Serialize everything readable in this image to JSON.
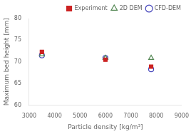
{
  "chart_data": {
    "type": "scatter",
    "xlabel": "Particle density [kg/m³]",
    "ylabel": "Maximum bed height [mm]",
    "x": [
      3500,
      6000,
      7800
    ],
    "series": [
      {
        "name": "Experiment",
        "color": "#cc2222",
        "marker": "square",
        "values": [
          72.3,
          70.5,
          68.9
        ]
      },
      {
        "name": "2D DEM",
        "color": "#558855",
        "marker": "triangle-open",
        "values": [
          71.7,
          70.9,
          70.9
        ]
      },
      {
        "name": "CFD-DEM",
        "color": "#4444bb",
        "marker": "circle-open",
        "values": [
          71.5,
          70.9,
          68.3
        ]
      }
    ],
    "xlim": [
      3000,
      9000
    ],
    "xticks": [
      3000,
      4000,
      5000,
      6000,
      7000,
      8000,
      9000
    ],
    "ylim": [
      60,
      80
    ],
    "yticks": [
      60,
      65,
      70,
      75,
      80
    ],
    "grid": false,
    "legend": "upper right"
  }
}
